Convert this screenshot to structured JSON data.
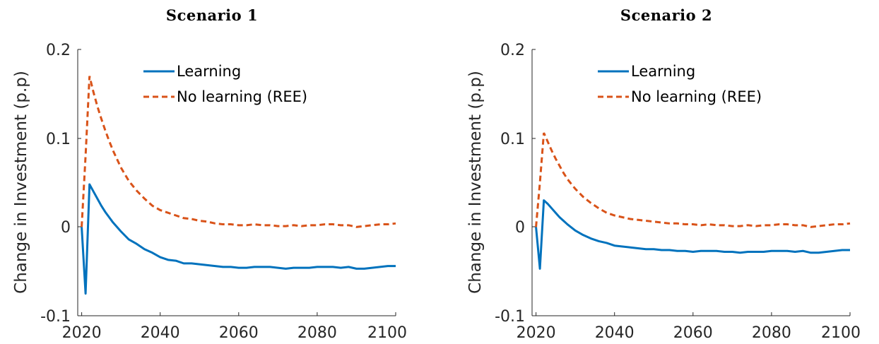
{
  "chart_data": [
    {
      "type": "line",
      "title": "Scenario 1",
      "xlabel": "",
      "ylabel": "Change in Investment (p.p)",
      "xlim": [
        2019,
        2100
      ],
      "ylim": [
        -0.1,
        0.2
      ],
      "xticks": [
        "2020",
        "2040",
        "2060",
        "2080",
        "2100"
      ],
      "yticks": [
        "-0.1",
        "0",
        "0.1",
        "0.2"
      ],
      "legend_position": "top-center",
      "grid": false,
      "series": [
        {
          "name": "Learning",
          "color": "#0072BD",
          "style": "solid",
          "x": [
            2020,
            2021,
            2022,
            2023,
            2024,
            2025,
            2026,
            2027,
            2028,
            2030,
            2032,
            2034,
            2036,
            2038,
            2040,
            2042,
            2044,
            2046,
            2048,
            2050,
            2052,
            2054,
            2056,
            2058,
            2060,
            2062,
            2064,
            2066,
            2068,
            2070,
            2072,
            2074,
            2076,
            2078,
            2080,
            2082,
            2084,
            2086,
            2088,
            2090,
            2092,
            2094,
            2096,
            2098,
            2100
          ],
          "values": [
            0.0,
            -0.075,
            0.048,
            0.04,
            0.032,
            0.024,
            0.017,
            0.011,
            0.005,
            -0.005,
            -0.014,
            -0.019,
            -0.025,
            -0.029,
            -0.034,
            -0.037,
            -0.038,
            -0.041,
            -0.041,
            -0.042,
            -0.043,
            -0.044,
            -0.045,
            -0.045,
            -0.046,
            -0.046,
            -0.045,
            -0.045,
            -0.045,
            -0.046,
            -0.047,
            -0.046,
            -0.046,
            -0.046,
            -0.045,
            -0.045,
            -0.045,
            -0.046,
            -0.045,
            -0.047,
            -0.047,
            -0.046,
            -0.045,
            -0.044,
            -0.044
          ]
        },
        {
          "name": "No learning (REE)",
          "color": "#D95319",
          "style": "dashed",
          "x": [
            2020,
            2021,
            2022,
            2023,
            2024,
            2025,
            2026,
            2027,
            2028,
            2030,
            2032,
            2034,
            2036,
            2038,
            2040,
            2042,
            2044,
            2046,
            2048,
            2050,
            2052,
            2054,
            2056,
            2058,
            2060,
            2062,
            2064,
            2066,
            2068,
            2070,
            2072,
            2074,
            2076,
            2078,
            2080,
            2082,
            2084,
            2086,
            2088,
            2090,
            2092,
            2094,
            2096,
            2098,
            2100
          ],
          "values": [
            0.0,
            0.08,
            0.17,
            0.152,
            0.136,
            0.122,
            0.109,
            0.097,
            0.086,
            0.067,
            0.052,
            0.041,
            0.032,
            0.024,
            0.019,
            0.016,
            0.013,
            0.01,
            0.009,
            0.007,
            0.006,
            0.004,
            0.003,
            0.003,
            0.002,
            0.002,
            0.003,
            0.002,
            0.002,
            0.001,
            0.001,
            0.002,
            0.001,
            0.002,
            0.002,
            0.003,
            0.003,
            0.002,
            0.002,
            0.0,
            0.001,
            0.002,
            0.003,
            0.003,
            0.004
          ]
        }
      ]
    },
    {
      "type": "line",
      "title": "Scenario 2",
      "xlabel": "",
      "ylabel": "Change in Investment (p.p)",
      "xlim": [
        2019,
        2100
      ],
      "ylim": [
        -0.1,
        0.2
      ],
      "xticks": [
        "2020",
        "2040",
        "2060",
        "2080",
        "2100"
      ],
      "yticks": [
        "-0.1",
        "0",
        "0.1",
        "0.2"
      ],
      "legend_position": "top-center",
      "grid": false,
      "series": [
        {
          "name": "Learning",
          "color": "#0072BD",
          "style": "solid",
          "x": [
            2020,
            2021,
            2022,
            2023,
            2024,
            2025,
            2026,
            2027,
            2028,
            2030,
            2032,
            2034,
            2036,
            2038,
            2040,
            2042,
            2044,
            2046,
            2048,
            2050,
            2052,
            2054,
            2056,
            2058,
            2060,
            2062,
            2064,
            2066,
            2068,
            2070,
            2072,
            2074,
            2076,
            2078,
            2080,
            2082,
            2084,
            2086,
            2088,
            2090,
            2092,
            2094,
            2096,
            2098,
            2100
          ],
          "values": [
            0.0,
            -0.047,
            0.03,
            0.026,
            0.021,
            0.016,
            0.011,
            0.007,
            0.003,
            -0.004,
            -0.009,
            -0.013,
            -0.016,
            -0.018,
            -0.021,
            -0.022,
            -0.023,
            -0.024,
            -0.025,
            -0.025,
            -0.026,
            -0.026,
            -0.027,
            -0.027,
            -0.028,
            -0.027,
            -0.027,
            -0.027,
            -0.028,
            -0.028,
            -0.029,
            -0.028,
            -0.028,
            -0.028,
            -0.027,
            -0.027,
            -0.027,
            -0.028,
            -0.027,
            -0.029,
            -0.029,
            -0.028,
            -0.027,
            -0.026,
            -0.026
          ]
        },
        {
          "name": "No learning (REE)",
          "color": "#D95319",
          "style": "dashed",
          "x": [
            2020,
            2021,
            2022,
            2023,
            2024,
            2025,
            2026,
            2027,
            2028,
            2030,
            2032,
            2034,
            2036,
            2038,
            2040,
            2042,
            2044,
            2046,
            2048,
            2050,
            2052,
            2054,
            2056,
            2058,
            2060,
            2062,
            2064,
            2066,
            2068,
            2070,
            2072,
            2074,
            2076,
            2078,
            2080,
            2082,
            2084,
            2086,
            2088,
            2090,
            2092,
            2094,
            2096,
            2098,
            2100
          ],
          "values": [
            0.0,
            0.05,
            0.106,
            0.096,
            0.086,
            0.077,
            0.069,
            0.061,
            0.054,
            0.043,
            0.034,
            0.027,
            0.021,
            0.016,
            0.013,
            0.011,
            0.009,
            0.008,
            0.007,
            0.006,
            0.005,
            0.004,
            0.004,
            0.003,
            0.003,
            0.002,
            0.003,
            0.002,
            0.002,
            0.001,
            0.001,
            0.002,
            0.001,
            0.002,
            0.002,
            0.003,
            0.003,
            0.002,
            0.002,
            0.0,
            0.001,
            0.002,
            0.003,
            0.003,
            0.004
          ]
        }
      ]
    }
  ]
}
